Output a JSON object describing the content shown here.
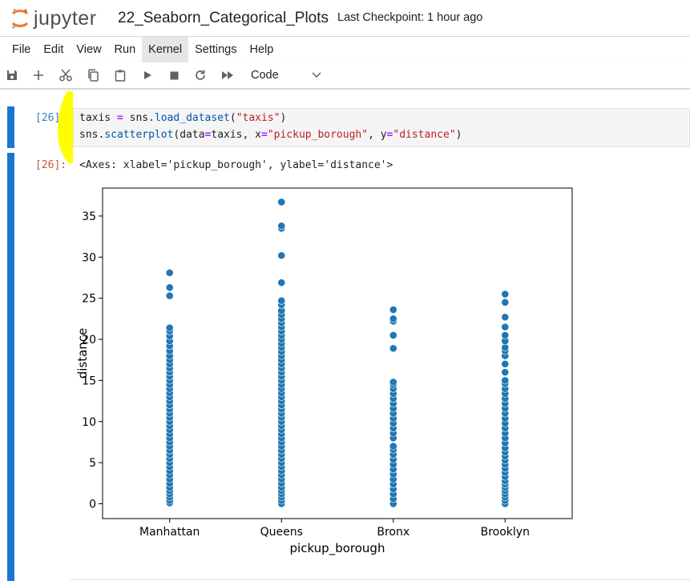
{
  "header": {
    "logo_text": "jupyter",
    "notebook_title": "22_Seaborn_Categorical_Plots",
    "checkpoint": "Last Checkpoint: 1 hour ago"
  },
  "menu": {
    "items": [
      "File",
      "Edit",
      "View",
      "Run",
      "Kernel",
      "Settings",
      "Help"
    ],
    "active": "Kernel"
  },
  "toolbar": {
    "buttons": [
      "save-icon",
      "add-cell-icon",
      "cut-icon",
      "copy-icon",
      "paste-icon",
      "run-icon",
      "stop-icon",
      "restart-icon",
      "run-all-icon"
    ],
    "cell_type": "Code"
  },
  "cell": {
    "input_prompt": "[26]:",
    "output_prompt": "[26]:",
    "code_line1": {
      "var": "taxis ",
      "op": "=",
      "mid": " sns.",
      "fn": "load_dataset",
      "open": "(",
      "str": "\"taxis\"",
      "close": ")"
    },
    "code_line2": {
      "pre": "sns.",
      "fn": "scatterplot",
      "a1": "(data",
      "op1": "=",
      "a2": "taxis, x",
      "op2": "=",
      "s1": "\"pickup_borough\"",
      "a3": ", y",
      "op3": "=",
      "s2": "\"distance\"",
      "close": ")"
    },
    "output_text": "<Axes: xlabel='pickup_borough', ylabel='distance'>"
  },
  "colors": {
    "accent": "#1976d2",
    "highlight": "#ffff00",
    "point": "#1f77b4"
  },
  "chart_data": {
    "type": "scatter",
    "xlabel": "pickup_borough",
    "ylabel": "distance",
    "categories": [
      "Manhattan",
      "Queens",
      "Bronx",
      "Brooklyn"
    ],
    "ylim": [
      -1.8,
      38.4
    ],
    "yticks": [
      0,
      5,
      10,
      15,
      20,
      25,
      30,
      35
    ],
    "ytick_labels": [
      "0",
      "5",
      "10",
      "15",
      "20",
      "25",
      "30",
      "35"
    ],
    "grid": false,
    "points": {
      "Manhattan": [
        0.1,
        0.4,
        0.8,
        1.2,
        1.6,
        2.0,
        2.5,
        3.0,
        3.5,
        4.0,
        4.5,
        5.0,
        5.5,
        6.0,
        6.5,
        7.0,
        7.5,
        8.0,
        8.5,
        9.0,
        9.5,
        10.0,
        10.5,
        11.0,
        11.5,
        12.0,
        12.5,
        13.0,
        13.5,
        14.0,
        14.5,
        15.0,
        15.5,
        16.0,
        16.5,
        17.0,
        17.5,
        18.0,
        18.6,
        19.2,
        19.8,
        20.4,
        21.0,
        21.4,
        25.3,
        26.3,
        28.1
      ],
      "Queens": [
        0.0,
        0.4,
        0.8,
        1.2,
        1.6,
        2.0,
        2.5,
        3.0,
        3.5,
        4.0,
        4.5,
        5.0,
        5.5,
        6.0,
        6.5,
        7.0,
        7.5,
        8.0,
        8.5,
        9.0,
        9.5,
        10.0,
        10.5,
        11.0,
        11.5,
        12.0,
        12.5,
        13.0,
        13.5,
        14.0,
        14.5,
        15.0,
        15.5,
        16.0,
        16.5,
        17.0,
        17.5,
        18.0,
        18.5,
        19.0,
        19.5,
        20.0,
        20.5,
        21.0,
        21.5,
        22.0,
        22.5,
        23.0,
        23.5,
        24.2,
        24.7,
        26.9,
        30.2,
        33.5,
        33.8,
        36.7
      ],
      "Bronx": [
        0.0,
        0.6,
        1.2,
        1.8,
        2.4,
        3.0,
        3.6,
        4.2,
        4.8,
        5.4,
        6.0,
        6.6,
        7.0,
        8.0,
        8.6,
        9.2,
        9.8,
        10.4,
        11.0,
        11.6,
        12.2,
        12.8,
        13.4,
        14.0,
        14.5,
        14.8,
        18.9,
        20.5,
        22.2,
        22.5,
        23.6
      ],
      "Brooklyn": [
        0.0,
        0.4,
        0.8,
        1.2,
        1.6,
        2.0,
        2.4,
        2.8,
        3.3,
        3.8,
        4.3,
        4.8,
        5.3,
        5.8,
        6.3,
        6.8,
        7.4,
        8.0,
        8.6,
        9.2,
        9.8,
        10.4,
        11.0,
        11.6,
        12.2,
        12.8,
        13.4,
        14.0,
        14.6,
        15.0,
        16.0,
        17.0,
        18.0,
        18.6,
        19.0,
        19.8,
        20.5,
        21.5,
        22.7,
        24.5,
        25.5
      ]
    }
  }
}
